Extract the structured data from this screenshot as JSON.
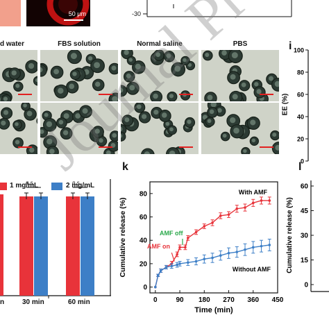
{
  "top": {
    "micrograph_scale": "50 μm",
    "left_axis_tick": "-30"
  },
  "columns": [
    "d water",
    "FBS solution",
    "Normal saline",
    "PBS"
  ],
  "panel_i": {
    "letter": "i",
    "ylabel": "EE (%)",
    "yticks": [
      "100",
      "80",
      "60",
      "40",
      "20",
      "0"
    ]
  },
  "panel_j": {
    "legend": [
      "1 mg/mL",
      "2 mg/mL"
    ],
    "colors": {
      "s1": "#e8333a",
      "s2": "#3d7fc7"
    },
    "categories": [
      "n",
      "30 min",
      "60 min"
    ],
    "annotations": [
      "n.s.",
      "n.s."
    ]
  },
  "panel_k": {
    "letter": "k",
    "ylabel": "Cumulative release (%)",
    "xlabel": "Time (min)",
    "xticks": [
      "0",
      "90",
      "180",
      "270",
      "360",
      "450"
    ],
    "yticks": [
      "0",
      "20",
      "40",
      "60",
      "80"
    ],
    "label_with": "With AMF",
    "label_without": "Without AMF",
    "label_amf_on": "AMF on",
    "label_amf_off": "AMF off"
  },
  "panel_l": {
    "letter": "l",
    "ylabel": "Cumulative release (%)",
    "yticks": [
      "60",
      "45",
      "30",
      "15",
      "0"
    ]
  },
  "chart_data": {
    "type": "line",
    "xlabel": "Time (min)",
    "ylabel": "Cumulative release (%)",
    "xlim": [
      -20,
      450
    ],
    "ylim": [
      -5,
      90
    ],
    "series": [
      {
        "name": "With AMF",
        "color": "#e8333a",
        "x": [
          0,
          10,
          20,
          40,
          60,
          80,
          90,
          110,
          120,
          150,
          180,
          210,
          240,
          270,
          300,
          330,
          360,
          390,
          420
        ],
        "y": [
          0,
          10,
          14,
          17,
          20,
          28,
          34,
          34,
          42,
          47,
          52,
          55,
          61,
          62,
          67,
          68,
          72,
          74,
          74
        ],
        "err": [
          0,
          1,
          1.5,
          1.5,
          2,
          2,
          2,
          2,
          2,
          2,
          2,
          2.5,
          2.5,
          2.5,
          3,
          3,
          3,
          3,
          3
        ]
      },
      {
        "name": "Without AMF",
        "color": "#3d7fc7",
        "x": [
          0,
          10,
          20,
          40,
          60,
          80,
          90,
          120,
          150,
          180,
          210,
          240,
          270,
          300,
          330,
          360,
          390,
          420
        ],
        "y": [
          0,
          10,
          14,
          17,
          18,
          19,
          20,
          21,
          22,
          24,
          25,
          27,
          29,
          30,
          32,
          34,
          35,
          36
        ],
        "err": [
          0,
          1,
          1.5,
          1.5,
          2,
          2,
          2,
          2.5,
          3,
          3.5,
          4,
          4,
          4.5,
          4.5,
          5,
          5,
          5,
          5
        ]
      }
    ]
  }
}
